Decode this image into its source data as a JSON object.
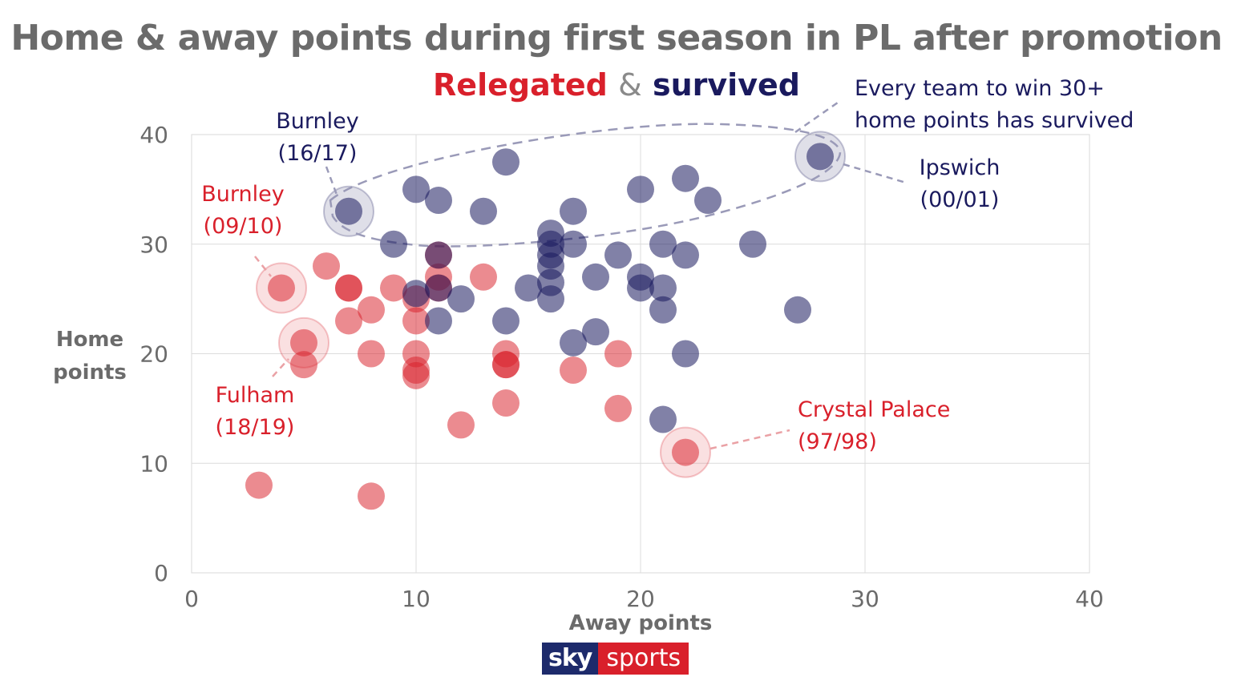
{
  "title": "Home & away points during first season in PL after promotion",
  "subtitle": {
    "relegated": "Relegated",
    "amp": "&",
    "survived": "survived"
  },
  "colors": {
    "relegated": "#d9202b",
    "survived": "#1a1a5e",
    "title": "#6b6b6b"
  },
  "logo": {
    "part1": "sky",
    "part2": "sports"
  },
  "chart_data": {
    "type": "scatter",
    "xlabel": "Away points",
    "ylabel": "Home points",
    "xlim": [
      0,
      40
    ],
    "ylim": [
      0,
      40
    ],
    "xticks": [
      0,
      10,
      20,
      30,
      40
    ],
    "yticks": [
      0,
      10,
      20,
      30,
      40
    ],
    "grid": true,
    "series": [
      {
        "name": "Relegated",
        "color": "#d9202b",
        "points": [
          [
            3,
            8
          ],
          [
            4,
            26
          ],
          [
            5,
            21
          ],
          [
            5,
            19
          ],
          [
            6,
            28
          ],
          [
            7,
            26
          ],
          [
            7,
            26
          ],
          [
            7,
            23
          ],
          [
            8,
            24
          ],
          [
            8,
            20
          ],
          [
            8,
            7
          ],
          [
            9,
            26
          ],
          [
            10,
            25
          ],
          [
            10,
            23
          ],
          [
            10,
            20
          ],
          [
            10,
            18.5
          ],
          [
            10,
            18
          ],
          [
            11,
            29
          ],
          [
            11,
            27
          ],
          [
            11,
            26
          ],
          [
            12,
            13.5
          ],
          [
            13,
            27
          ],
          [
            14,
            20
          ],
          [
            14,
            19
          ],
          [
            14,
            19
          ],
          [
            14,
            15.5
          ],
          [
            17,
            18.5
          ],
          [
            19,
            20
          ],
          [
            19,
            15
          ],
          [
            22,
            11
          ]
        ]
      },
      {
        "name": "Survived",
        "color": "#1a1a5e",
        "points": [
          [
            7,
            33
          ],
          [
            9,
            30
          ],
          [
            10,
            35
          ],
          [
            10,
            25.5
          ],
          [
            11,
            34
          ],
          [
            11,
            29
          ],
          [
            11,
            26
          ],
          [
            11,
            23
          ],
          [
            12,
            25
          ],
          [
            13,
            33
          ],
          [
            14,
            37.5
          ],
          [
            14,
            23
          ],
          [
            15,
            26
          ],
          [
            16,
            31
          ],
          [
            16,
            30
          ],
          [
            16,
            29
          ],
          [
            16,
            28
          ],
          [
            16,
            26.5
          ],
          [
            16,
            25
          ],
          [
            17,
            33
          ],
          [
            17,
            30
          ],
          [
            17,
            21
          ],
          [
            18,
            27
          ],
          [
            18,
            22
          ],
          [
            19,
            29
          ],
          [
            20,
            35
          ],
          [
            20,
            27
          ],
          [
            20,
            26
          ],
          [
            21,
            30
          ],
          [
            21,
            26
          ],
          [
            21,
            24
          ],
          [
            21,
            14
          ],
          [
            22,
            36
          ],
          [
            22,
            29
          ],
          [
            22,
            20
          ],
          [
            23,
            34
          ],
          [
            25,
            30
          ],
          [
            27,
            24
          ],
          [
            28,
            38
          ]
        ]
      }
    ],
    "highlights": [
      {
        "team": "Burnley",
        "season": "(16/17)",
        "x": 7,
        "y": 33,
        "group": "survived"
      },
      {
        "team": "Burnley",
        "season": "(09/10)",
        "x": 4,
        "y": 26,
        "group": "relegated"
      },
      {
        "team": "Fulham",
        "season": "(18/19)",
        "x": 5,
        "y": 21,
        "group": "relegated"
      },
      {
        "team": "Ipswich",
        "season": "(00/01)",
        "x": 28,
        "y": 38,
        "group": "survived"
      },
      {
        "team": "Crystal Palace",
        "season": "(97/98)",
        "x": 22,
        "y": 11,
        "group": "relegated"
      }
    ],
    "annotation": {
      "line1": "Every team to win 30+",
      "line2": "home points has survived"
    }
  }
}
